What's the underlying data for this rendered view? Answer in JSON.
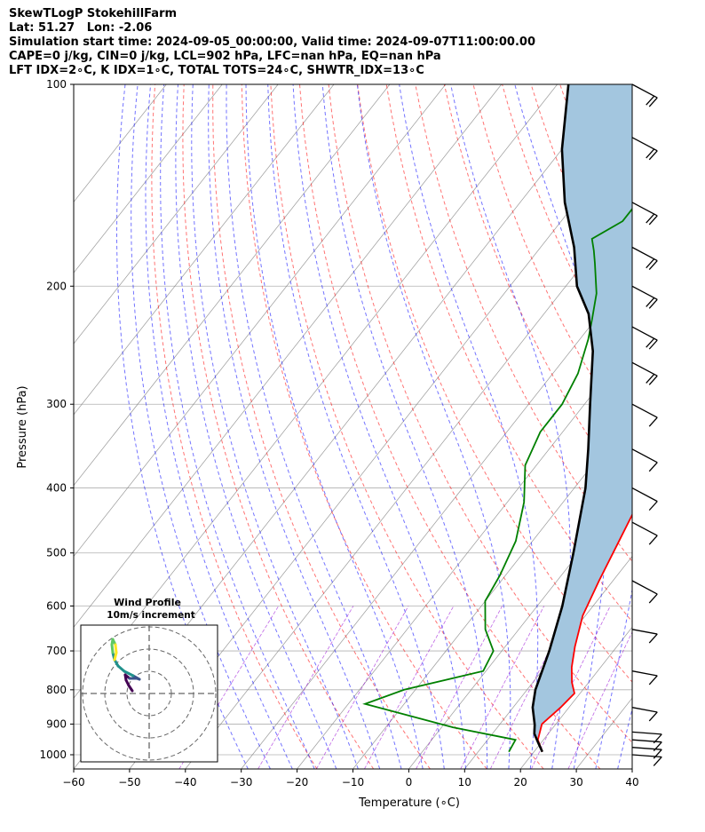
{
  "header": {
    "line1": "SkewTLogP StokehillFarm",
    "line2": "Lat: 51.27   Lon: -2.06",
    "line3": "Simulation start time: 2024-09-05_00:00:00, Valid time: 2024-09-07T11:00:00.00",
    "line4": "CAPE=0 j/kg, CIN=0 j/kg, LCL=902 hPa, LFC=nan hPa, EQ=nan hPa",
    "line5": "LFT IDX=2∘C, K IDX=1∘C, TOTAL TOTS=24∘C, SHWTR_IDX=13∘C"
  },
  "chart_data": {
    "type": "line",
    "xlabel": "Temperature (∘C)",
    "ylabel": "Pressure (hPa)",
    "xlim": [
      -60,
      40
    ],
    "ylim": [
      1050,
      100
    ],
    "y_scale": "log",
    "x_ticks": [
      "−60",
      "−50",
      "−40",
      "−30",
      "−20",
      "−10",
      "0",
      "10",
      "20",
      "30",
      "40"
    ],
    "y_ticks": [
      "100",
      "200",
      "300",
      "400",
      "500",
      "600",
      "700",
      "800",
      "900",
      "1000"
    ],
    "grid": true,
    "series": [
      {
        "role": "temperature",
        "color": "#ff0000",
        "points": [
          [
            21.5,
            990
          ],
          [
            19,
            950
          ],
          [
            17.5,
            900
          ],
          [
            18.5,
            850
          ],
          [
            19,
            810
          ],
          [
            17,
            780
          ],
          [
            14.8,
            740
          ],
          [
            12.5,
            690
          ],
          [
            9.5,
            620
          ],
          [
            7.5,
            550
          ],
          [
            5.5,
            480
          ],
          [
            3.5,
            420
          ],
          [
            0.5,
            370
          ],
          [
            -3.5,
            330
          ],
          [
            -7.5,
            300
          ],
          [
            -10.5,
            280
          ],
          [
            -12.5,
            260
          ],
          [
            -14,
            240
          ],
          [
            -15.5,
            220
          ],
          [
            -18,
            200
          ],
          [
            -19.5,
            190
          ],
          [
            -20.5,
            180
          ],
          [
            -20.5,
            170
          ],
          [
            -20.8,
            160
          ],
          [
            -23.5,
            150
          ],
          [
            -25.5,
            140
          ],
          [
            -28,
            130
          ],
          [
            -30,
            120
          ],
          [
            -32,
            110
          ],
          [
            -33.5,
            100
          ]
        ]
      },
      {
        "role": "dewpoint",
        "color": "#008000",
        "points": [
          [
            15.5,
            990
          ],
          [
            15,
            950
          ],
          [
            2,
            910
          ],
          [
            -17,
            840
          ],
          [
            -12,
            800
          ],
          [
            -0.5,
            750
          ],
          [
            -1.5,
            700
          ],
          [
            -6,
            650
          ],
          [
            -10,
            590
          ],
          [
            -11,
            540
          ],
          [
            -13,
            480
          ],
          [
            -17,
            420
          ],
          [
            -22,
            370
          ],
          [
            -24,
            330
          ],
          [
            -24,
            300
          ],
          [
            -25.5,
            270
          ],
          [
            -28.5,
            240
          ],
          [
            -30.5,
            225
          ],
          [
            -33.5,
            205
          ],
          [
            -38,
            185
          ],
          [
            -40,
            177
          ],
          [
            -42,
            170
          ],
          [
            -39,
            160
          ],
          [
            -39,
            150
          ],
          [
            -35,
            135
          ],
          [
            -35,
            120
          ],
          [
            -30,
            110
          ],
          [
            -28,
            100
          ]
        ]
      },
      {
        "role": "parcel",
        "color": "#000000",
        "points": [
          [
            21.5,
            990
          ],
          [
            19.5,
            960
          ],
          [
            17.5,
            930
          ],
          [
            16.3,
            902
          ],
          [
            13.5,
            850
          ],
          [
            11.5,
            800
          ],
          [
            8.5,
            700
          ],
          [
            4.5,
            600
          ],
          [
            -1,
            500
          ],
          [
            -8,
            400
          ],
          [
            -13,
            350
          ],
          [
            -19,
            300
          ],
          [
            -26,
            250
          ],
          [
            -32,
            220
          ],
          [
            -38,
            200
          ],
          [
            -44,
            175
          ],
          [
            -52,
            150
          ],
          [
            -60,
            125
          ],
          [
            -68,
            100
          ]
        ]
      }
    ],
    "isotherm_color": "#808080",
    "dry_adiabat_color": "#ff0000",
    "moist_adiabat_color": "#0000ff",
    "mixing_ratio_color": "#9400d3",
    "cape_fill_color": "#a3c6df",
    "wind_barb_pressures": [
      100,
      120,
      150,
      175,
      200,
      230,
      260,
      300,
      350,
      400,
      450,
      550,
      650,
      750,
      850,
      925,
      950,
      975,
      1000
    ],
    "hodograph": {
      "title": "Wind Profile",
      "subtitle": "10m/s increment",
      "colors": [
        "#440154",
        "#3b528b",
        "#21918c",
        "#5ec962",
        "#fde725"
      ]
    }
  }
}
